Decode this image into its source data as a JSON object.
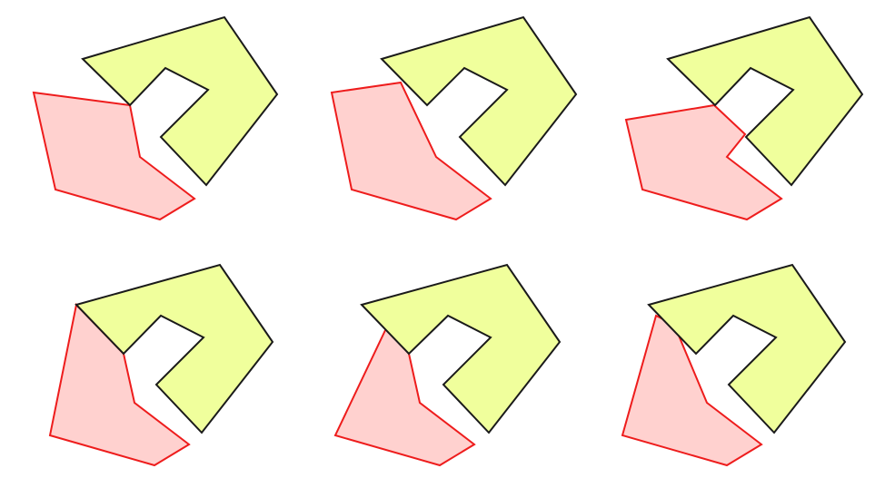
{
  "figure": {
    "description_free": true,
    "colors": {
      "yellow_fill": "#f0ff9c",
      "yellow_stroke": "#1a1a1a",
      "pink_fill": "#ffd1cf",
      "pink_stroke": "#ee1c1c",
      "background": "#ffffff"
    },
    "panel_count": 6,
    "panels": [
      {
        "id": "panel-1"
      },
      {
        "id": "panel-2"
      },
      {
        "id": "panel-3"
      },
      {
        "id": "panel-4"
      },
      {
        "id": "panel-5"
      },
      {
        "id": "panel-6"
      }
    ]
  }
}
